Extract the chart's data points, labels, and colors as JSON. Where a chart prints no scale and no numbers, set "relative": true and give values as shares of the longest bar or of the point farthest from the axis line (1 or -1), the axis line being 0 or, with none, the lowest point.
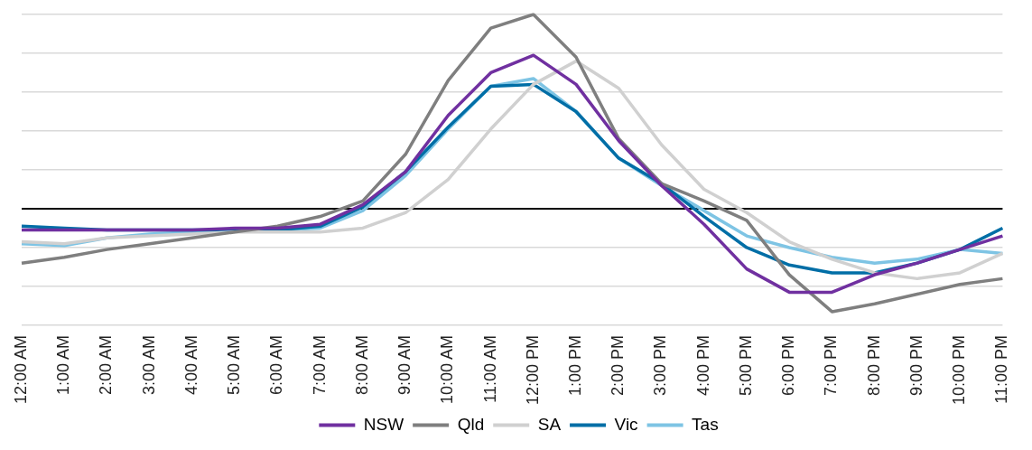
{
  "chart_data": {
    "type": "line",
    "relative": true,
    "grid": "y",
    "legend": "bottom",
    "marker": "none",
    "line_style": "solid",
    "categories": [
      "12:00 AM",
      "1:00 AM",
      "2:00 AM",
      "3:00 AM",
      "4:00 AM",
      "5:00 AM",
      "6:00 AM",
      "7:00 AM",
      "8:00 AM",
      "9:00 AM",
      "10:00 AM",
      "11:00 AM",
      "12:00 PM",
      "1:00 PM",
      "2:00 PM",
      "3:00 PM",
      "4:00 PM",
      "5:00 PM",
      "6:00 PM",
      "7:00 PM",
      "8:00 PM",
      "9:00 PM",
      "10:00 PM",
      "11:00 PM"
    ],
    "series": [
      {
        "name": "NSW",
        "color": "#7030a0",
        "values": [
          -0.11,
          -0.11,
          -0.11,
          -0.11,
          -0.11,
          -0.1,
          -0.1,
          -0.08,
          0.02,
          0.19,
          0.48,
          0.7,
          0.79,
          0.64,
          0.35,
          0.12,
          -0.08,
          -0.31,
          -0.43,
          -0.43,
          -0.34,
          -0.28,
          -0.21,
          -0.14
        ]
      },
      {
        "name": "Qld",
        "color": "#7f7f7f",
        "values": [
          -0.28,
          -0.25,
          -0.21,
          -0.18,
          -0.15,
          -0.12,
          -0.09,
          -0.04,
          0.04,
          0.28,
          0.66,
          0.93,
          1,
          0.78,
          0.36,
          0.13,
          0.04,
          -0.06,
          -0.34,
          -0.53,
          -0.49,
          -0.44,
          -0.39,
          -0.36
        ]
      },
      {
        "name": "SA",
        "color": "#d0d0d0",
        "values": [
          -0.17,
          -0.18,
          -0.15,
          -0.14,
          -0.13,
          -0.12,
          -0.12,
          -0.12,
          -0.1,
          -0.02,
          0.15,
          0.41,
          0.64,
          0.76,
          0.62,
          0.33,
          0.1,
          -0.02,
          -0.17,
          -0.26,
          -0.33,
          -0.36,
          -0.33,
          -0.23
        ]
      },
      {
        "name": "Vic",
        "color": "#006ea6",
        "values": [
          -0.09,
          -0.1,
          -0.11,
          -0.11,
          -0.11,
          -0.11,
          -0.11,
          -0.09,
          0.01,
          0.19,
          0.42,
          0.63,
          0.64,
          0.5,
          0.26,
          0.13,
          -0.04,
          -0.2,
          -0.29,
          -0.33,
          -0.33,
          -0.28,
          -0.21,
          -0.1
        ]
      },
      {
        "name": "Tas",
        "color": "#7ec4e4",
        "values": [
          -0.18,
          -0.19,
          -0.15,
          -0.13,
          -0.12,
          -0.11,
          -0.11,
          -0.1,
          -0.01,
          0.17,
          0.41,
          0.63,
          0.67,
          0.5,
          0.26,
          0.12,
          -0.01,
          -0.14,
          -0.2,
          -0.25,
          -0.28,
          -0.26,
          -0.21,
          -0.23
        ]
      }
    ]
  }
}
